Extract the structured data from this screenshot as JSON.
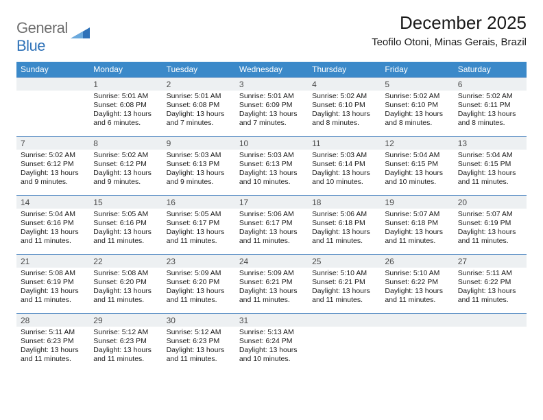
{
  "logo": {
    "text_gray": "General",
    "text_blue": "Blue",
    "triangle_color": "#2f72b8"
  },
  "title": "December 2025",
  "location": "Teofilo Otoni, Minas Gerais, Brazil",
  "colors": {
    "header_bg": "#3b89c9",
    "header_text": "#ffffff",
    "row_border": "#2f72b8",
    "daynum_bg": "#edf0f2",
    "daynum_text": "#4a4a4a",
    "body_text": "#1a1a1a"
  },
  "weekdays": [
    "Sunday",
    "Monday",
    "Tuesday",
    "Wednesday",
    "Thursday",
    "Friday",
    "Saturday"
  ],
  "weeks": [
    [
      null,
      {
        "n": "1",
        "sr": "5:01 AM",
        "ss": "6:08 PM",
        "dl": "13 hours and 6 minutes."
      },
      {
        "n": "2",
        "sr": "5:01 AM",
        "ss": "6:08 PM",
        "dl": "13 hours and 7 minutes."
      },
      {
        "n": "3",
        "sr": "5:01 AM",
        "ss": "6:09 PM",
        "dl": "13 hours and 7 minutes."
      },
      {
        "n": "4",
        "sr": "5:02 AM",
        "ss": "6:10 PM",
        "dl": "13 hours and 8 minutes."
      },
      {
        "n": "5",
        "sr": "5:02 AM",
        "ss": "6:10 PM",
        "dl": "13 hours and 8 minutes."
      },
      {
        "n": "6",
        "sr": "5:02 AM",
        "ss": "6:11 PM",
        "dl": "13 hours and 8 minutes."
      }
    ],
    [
      {
        "n": "7",
        "sr": "5:02 AM",
        "ss": "6:12 PM",
        "dl": "13 hours and 9 minutes."
      },
      {
        "n": "8",
        "sr": "5:02 AM",
        "ss": "6:12 PM",
        "dl": "13 hours and 9 minutes."
      },
      {
        "n": "9",
        "sr": "5:03 AM",
        "ss": "6:13 PM",
        "dl": "13 hours and 9 minutes."
      },
      {
        "n": "10",
        "sr": "5:03 AM",
        "ss": "6:13 PM",
        "dl": "13 hours and 10 minutes."
      },
      {
        "n": "11",
        "sr": "5:03 AM",
        "ss": "6:14 PM",
        "dl": "13 hours and 10 minutes."
      },
      {
        "n": "12",
        "sr": "5:04 AM",
        "ss": "6:15 PM",
        "dl": "13 hours and 10 minutes."
      },
      {
        "n": "13",
        "sr": "5:04 AM",
        "ss": "6:15 PM",
        "dl": "13 hours and 11 minutes."
      }
    ],
    [
      {
        "n": "14",
        "sr": "5:04 AM",
        "ss": "6:16 PM",
        "dl": "13 hours and 11 minutes."
      },
      {
        "n": "15",
        "sr": "5:05 AM",
        "ss": "6:16 PM",
        "dl": "13 hours and 11 minutes."
      },
      {
        "n": "16",
        "sr": "5:05 AM",
        "ss": "6:17 PM",
        "dl": "13 hours and 11 minutes."
      },
      {
        "n": "17",
        "sr": "5:06 AM",
        "ss": "6:17 PM",
        "dl": "13 hours and 11 minutes."
      },
      {
        "n": "18",
        "sr": "5:06 AM",
        "ss": "6:18 PM",
        "dl": "13 hours and 11 minutes."
      },
      {
        "n": "19",
        "sr": "5:07 AM",
        "ss": "6:18 PM",
        "dl": "13 hours and 11 minutes."
      },
      {
        "n": "20",
        "sr": "5:07 AM",
        "ss": "6:19 PM",
        "dl": "13 hours and 11 minutes."
      }
    ],
    [
      {
        "n": "21",
        "sr": "5:08 AM",
        "ss": "6:19 PM",
        "dl": "13 hours and 11 minutes."
      },
      {
        "n": "22",
        "sr": "5:08 AM",
        "ss": "6:20 PM",
        "dl": "13 hours and 11 minutes."
      },
      {
        "n": "23",
        "sr": "5:09 AM",
        "ss": "6:20 PM",
        "dl": "13 hours and 11 minutes."
      },
      {
        "n": "24",
        "sr": "5:09 AM",
        "ss": "6:21 PM",
        "dl": "13 hours and 11 minutes."
      },
      {
        "n": "25",
        "sr": "5:10 AM",
        "ss": "6:21 PM",
        "dl": "13 hours and 11 minutes."
      },
      {
        "n": "26",
        "sr": "5:10 AM",
        "ss": "6:22 PM",
        "dl": "13 hours and 11 minutes."
      },
      {
        "n": "27",
        "sr": "5:11 AM",
        "ss": "6:22 PM",
        "dl": "13 hours and 11 minutes."
      }
    ],
    [
      {
        "n": "28",
        "sr": "5:11 AM",
        "ss": "6:23 PM",
        "dl": "13 hours and 11 minutes."
      },
      {
        "n": "29",
        "sr": "5:12 AM",
        "ss": "6:23 PM",
        "dl": "13 hours and 11 minutes."
      },
      {
        "n": "30",
        "sr": "5:12 AM",
        "ss": "6:23 PM",
        "dl": "13 hours and 11 minutes."
      },
      {
        "n": "31",
        "sr": "5:13 AM",
        "ss": "6:24 PM",
        "dl": "13 hours and 10 minutes."
      },
      null,
      null,
      null
    ]
  ],
  "labels": {
    "sunrise": "Sunrise: ",
    "sunset": "Sunset: ",
    "daylight": "Daylight: "
  }
}
